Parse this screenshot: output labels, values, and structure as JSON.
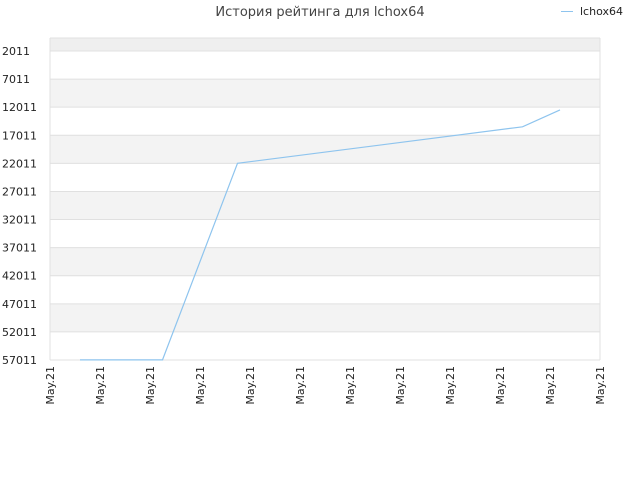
{
  "chart_data": {
    "type": "line",
    "title": "История рейтинга для lchox64",
    "xlabel": "",
    "ylabel": "",
    "ylim": [
      2011,
      57011
    ],
    "y_reversed": true,
    "y_ticks": [
      "2011",
      "7011",
      "12011",
      "17011",
      "22011",
      "27011",
      "32011",
      "37011",
      "42011",
      "47011",
      "52011",
      "57011"
    ],
    "x_ticks": [
      "May.21",
      "May.21",
      "May.21",
      "May.21",
      "May.21",
      "May.21",
      "May.21",
      "May.21",
      "May.21",
      "May.21",
      "May.21",
      "May.21"
    ],
    "grid": true,
    "legend_position": "top-right",
    "series": [
      {
        "name": "lchox64",
        "color": "#8ec4ee",
        "x": [
          0.6,
          2.25,
          3.75,
          9.45,
          10.2
        ],
        "values": [
          57000,
          57000,
          22000,
          15500,
          12500
        ]
      }
    ]
  }
}
